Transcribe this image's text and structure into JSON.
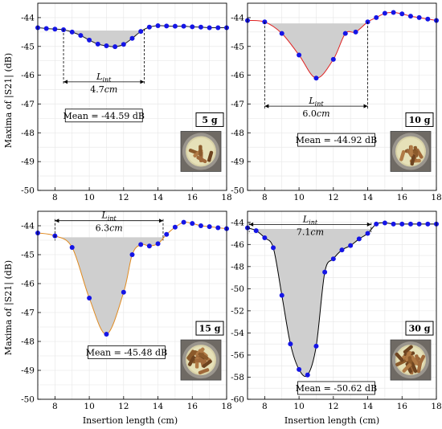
{
  "figure": {
    "ylabel": "Maxima of |S21| (dB)",
    "xlabel": "Insertion length (cm)"
  },
  "chart_data": [
    {
      "type": "line",
      "panel": "5 g",
      "mass_label": "5 g",
      "mean_label": "Mean = -44.59 dB",
      "lint_label": "L",
      "lint_sub": "int",
      "lint_value": "4.7",
      "lint_unit": "cm",
      "lint_range": [
        8.5,
        13.2
      ],
      "mean_level": -44.45,
      "curve_color": "#1a1a1a",
      "marker_color": "#1515e6",
      "fill_color": "#cfcfcf",
      "xlim": [
        7,
        18
      ],
      "ylim": [
        -50,
        -43.5
      ],
      "xticks": [
        8,
        10,
        12,
        14,
        16,
        18
      ],
      "yticks": [
        -44,
        -45,
        -46,
        -47,
        -48,
        -49,
        -50
      ],
      "x": [
        7.0,
        7.5,
        8.0,
        8.5,
        9.0,
        9.5,
        10.0,
        10.5,
        11.0,
        11.5,
        12.0,
        12.5,
        13.0,
        13.5,
        14.0,
        14.5,
        15.0,
        15.5,
        16.0,
        16.5,
        17.0,
        17.5,
        18.0
      ],
      "y": [
        -44.35,
        -44.38,
        -44.4,
        -44.42,
        -44.5,
        -44.62,
        -44.78,
        -44.92,
        -44.98,
        -45.01,
        -44.93,
        -44.72,
        -44.48,
        -44.33,
        -44.28,
        -44.29,
        -44.3,
        -44.3,
        -44.32,
        -44.33,
        -44.35,
        -44.35,
        -44.35
      ]
    },
    {
      "type": "line",
      "panel": "10 g",
      "mass_label": "10 g",
      "mean_label": "Mean = -44.92 dB",
      "lint_label": "L",
      "lint_sub": "int",
      "lint_value": "6.0",
      "lint_unit": "cm",
      "lint_range": [
        8.0,
        14.0
      ],
      "mean_level": -44.2,
      "curve_color": "#e02020",
      "marker_color": "#1515e6",
      "fill_color": "#cfcfcf",
      "xlim": [
        7,
        18
      ],
      "ylim": [
        -50,
        -43.5
      ],
      "xticks": [
        8,
        10,
        12,
        14,
        16,
        18
      ],
      "yticks": [
        -44,
        -45,
        -46,
        -47,
        -48,
        -49,
        -50
      ],
      "x": [
        7.0,
        8.0,
        9.0,
        10.0,
        11.0,
        12.0,
        12.7,
        13.3,
        14.0,
        14.5,
        15.0,
        15.5,
        16.0,
        16.5,
        17.0,
        17.5,
        18.0
      ],
      "y": [
        -44.1,
        -44.15,
        -44.55,
        -45.3,
        -46.1,
        -45.45,
        -44.55,
        -44.5,
        -44.15,
        -44.0,
        -43.85,
        -43.82,
        -43.87,
        -43.95,
        -44.0,
        -44.05,
        -44.1
      ]
    },
    {
      "type": "line",
      "panel": "15 g",
      "mass_label": "15 g",
      "mean_label": "Mean = -45.48 dB",
      "lint_label": "L",
      "lint_sub": "int",
      "lint_value": "6.3",
      "lint_unit": "cm",
      "lint_range": [
        8.0,
        14.3
      ],
      "mean_level": -44.4,
      "curve_color": "#e08a20",
      "marker_color": "#1515e6",
      "fill_color": "#cfcfcf",
      "xlim": [
        7,
        18
      ],
      "ylim": [
        -50,
        -43.5
      ],
      "xticks": [
        8,
        10,
        12,
        14,
        16,
        18
      ],
      "yticks": [
        -44,
        -45,
        -46,
        -47,
        -48,
        -49,
        -50
      ],
      "x": [
        7.0,
        8.0,
        9.0,
        10.0,
        11.0,
        12.0,
        12.5,
        13.0,
        13.5,
        14.0,
        14.5,
        15.0,
        15.5,
        16.0,
        16.5,
        17.0,
        17.5,
        18.0
      ],
      "y": [
        -44.25,
        -44.35,
        -44.75,
        -46.5,
        -47.75,
        -46.3,
        -45.0,
        -44.65,
        -44.7,
        -44.62,
        -44.3,
        -44.05,
        -43.88,
        -43.92,
        -44.0,
        -44.03,
        -44.07,
        -44.1
      ]
    },
    {
      "type": "line",
      "panel": "30 g",
      "mass_label": "30 g",
      "mean_label": "Mean = -50.62 dB",
      "lint_label": "L",
      "lint_sub": "int",
      "lint_value": "7.1",
      "lint_unit": "cm",
      "lint_range": [
        7.1,
        14.2
      ],
      "mean_level": -44.6,
      "curve_color": "#000000",
      "marker_color": "#1515e6",
      "fill_color": "#cfcfcf",
      "xlim": [
        7,
        18
      ],
      "ylim": [
        -60,
        -43
      ],
      "xticks": [
        8,
        10,
        12,
        14,
        16,
        18
      ],
      "yticks": [
        -44,
        -46,
        -48,
        -50,
        -52,
        -54,
        -56,
        -58,
        -60
      ],
      "x": [
        7.0,
        7.5,
        8.0,
        8.5,
        9.0,
        9.5,
        10.0,
        10.5,
        11.0,
        11.5,
        12.0,
        12.5,
        13.0,
        13.5,
        14.0,
        14.5,
        15.0,
        15.5,
        16.0,
        16.5,
        17.0,
        17.5,
        18.0
      ],
      "y": [
        -44.5,
        -44.75,
        -45.4,
        -46.3,
        -50.6,
        -55.0,
        -57.3,
        -57.8,
        -55.2,
        -48.5,
        -47.3,
        -46.5,
        -46.1,
        -45.5,
        -45.0,
        -44.15,
        -44.05,
        -44.15,
        -44.15,
        -44.15,
        -44.15,
        -44.15,
        -44.15
      ]
    }
  ]
}
